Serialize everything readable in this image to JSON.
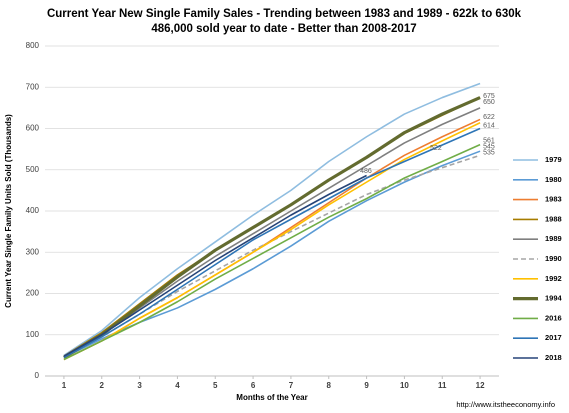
{
  "chart_data": {
    "type": "line",
    "title": "Current Year New Single Family Sales - Trending between 1983 and 1989 - 622k to 630k",
    "subtitle": "486,000 sold year to date - Better than 2008-2017",
    "x_label": "Months of the Year",
    "y_label": "Current Year Single Family Units Sold (Thousands)",
    "source": "http://www.itstheeconomy.info",
    "x": [
      1,
      2,
      3,
      4,
      5,
      6,
      7,
      8,
      9,
      10,
      11,
      12
    ],
    "xlim": [
      0.5,
      12.5
    ],
    "xticks": [
      1,
      2,
      3,
      4,
      5,
      6,
      7,
      8,
      9,
      10,
      11,
      12
    ],
    "ylim": [
      0,
      800
    ],
    "yticks": [
      0,
      100,
      200,
      300,
      400,
      500,
      600,
      700,
      800
    ],
    "grid": true,
    "legend": "right",
    "series": [
      {
        "name": "1979",
        "color": "#8fbde0",
        "width": 1.6,
        "dashed": false,
        "values": [
          50,
          110,
          190,
          260,
          325,
          390,
          450,
          520,
          580,
          635,
          675,
          709
        ]
      },
      {
        "name": "1980",
        "color": "#5b9bd5",
        "width": 1.6,
        "dashed": false,
        "values": [
          45,
          90,
          130,
          165,
          210,
          260,
          315,
          375,
          425,
          470,
          510,
          545
        ]
      },
      {
        "name": "1983",
        "color": "#ed7d31",
        "width": 1.6,
        "dashed": false,
        "values": [
          40,
          85,
          140,
          190,
          245,
          300,
          360,
          420,
          480,
          535,
          580,
          622
        ]
      },
      {
        "name": "1988",
        "color": "#a67c00",
        "width": 1.6,
        "dashed": false,
        "values": [
          48,
          105,
          175,
          245,
          305,
          360,
          415,
          475,
          530,
          588,
          632,
          675
        ]
      },
      {
        "name": "1989",
        "color": "#7f7f7f",
        "width": 1.6,
        "dashed": false,
        "values": [
          45,
          100,
          165,
          230,
          290,
          345,
          400,
          455,
          510,
          565,
          610,
          650
        ]
      },
      {
        "name": "1990",
        "color": "#a5a5a5",
        "width": 1.6,
        "dashed": true,
        "values": [
          45,
          95,
          150,
          205,
          255,
          305,
          350,
          395,
          440,
          475,
          505,
          535
        ]
      },
      {
        "name": "1992",
        "color": "#ffc000",
        "width": 1.6,
        "dashed": false,
        "values": [
          40,
          85,
          140,
          190,
          245,
          300,
          355,
          415,
          470,
          525,
          570,
          614
        ]
      },
      {
        "name": "1994",
        "color": "#636b2f",
        "width": 3.2,
        "dashed": false,
        "values": [
          45,
          100,
          170,
          240,
          305,
          360,
          415,
          475,
          530,
          590,
          635,
          675
        ]
      },
      {
        "name": "2016",
        "color": "#70ad47",
        "width": 1.6,
        "dashed": false,
        "values": [
          40,
          85,
          130,
          180,
          235,
          285,
          335,
          385,
          430,
          480,
          520,
          561
        ]
      },
      {
        "name": "2017",
        "color": "#2e75b6",
        "width": 1.6,
        "dashed": false,
        "values": [
          45,
          95,
          150,
          210,
          270,
          330,
          380,
          430,
          480,
          520,
          560,
          600
        ]
      },
      {
        "name": "2018",
        "color": "#264478",
        "width": 1.6,
        "dashed": false,
        "values": [
          48,
          100,
          160,
          220,
          280,
          335,
          390,
          440,
          486,
          null,
          null,
          null
        ]
      }
    ],
    "annotations": [
      {
        "text": "675",
        "x": 12,
        "y": 679
      },
      {
        "text": "650",
        "x": 12,
        "y": 664
      },
      {
        "text": "622",
        "x": 12,
        "y": 627
      },
      {
        "text": "614",
        "x": 12,
        "y": 607
      },
      {
        "text": "561",
        "x": 12,
        "y": 570
      },
      {
        "text": "545",
        "x": 12,
        "y": 556
      },
      {
        "text": "535",
        "x": 12,
        "y": 541
      },
      {
        "text": "522",
        "x": 10.6,
        "y": 552
      },
      {
        "text": "486",
        "x": 8.75,
        "y": 496
      }
    ]
  }
}
